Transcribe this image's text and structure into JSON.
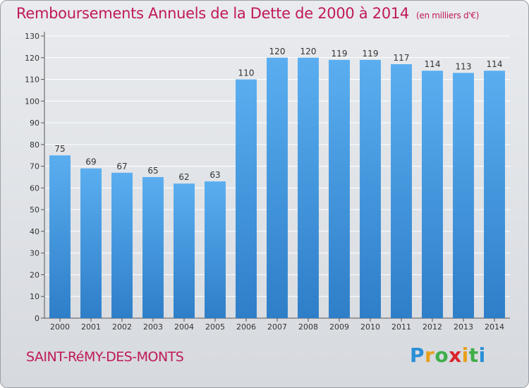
{
  "title": "Remboursements Annuels de la Dette de 2000 à 2014",
  "subtitle": "(en milliers d'€)",
  "commune": "SAINT-RéMY-DES-MONTS",
  "logo": {
    "letters": [
      "P",
      "r",
      "o",
      "x",
      "i",
      "t",
      "i"
    ],
    "colors": [
      "#2a8fd6",
      "#e8a01a",
      "#3fae49",
      "#d9262c",
      "#e8a01a",
      "#3fae49",
      "#2a8fd6"
    ]
  },
  "colors": {
    "bar_light": "#5aaef0",
    "bar_dark": "#2e7ec8",
    "grid": "#ffffff",
    "title": "#c0185a"
  },
  "chart_data": {
    "type": "bar",
    "title": "Remboursements Annuels de la Dette de 2000 à 2014",
    "subtitle": "(en milliers d'€)",
    "xlabel": "",
    "ylabel": "",
    "categories": [
      "2000",
      "2001",
      "2002",
      "2003",
      "2004",
      "2005",
      "2006",
      "2007",
      "2008",
      "2009",
      "2010",
      "2011",
      "2012",
      "2013",
      "2014"
    ],
    "values": [
      75,
      69,
      67,
      65,
      62,
      63,
      110,
      120,
      120,
      119,
      119,
      117,
      114,
      113,
      114
    ],
    "ylim": [
      0,
      130
    ],
    "yticks": [
      0,
      10,
      20,
      30,
      40,
      50,
      60,
      70,
      80,
      90,
      100,
      110,
      120,
      130
    ],
    "grid": true,
    "data_labels": true
  }
}
